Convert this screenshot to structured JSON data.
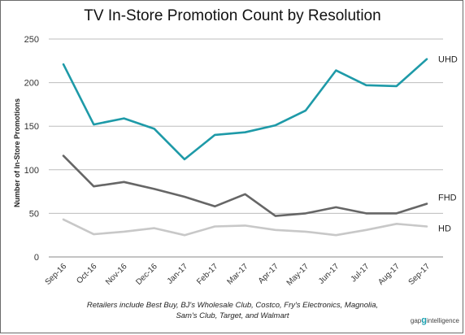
{
  "chart_data": {
    "type": "line",
    "title": "TV In-Store Promotion Count by Resolution",
    "ylabel": "Number of In-Store Promotions",
    "xlabel": "",
    "ylim": [
      0,
      250
    ],
    "yticks": [
      0,
      50,
      100,
      150,
      200,
      250
    ],
    "grid": true,
    "legend": "inline labels at line ends",
    "categories": [
      "Sep-16",
      "Oct-16",
      "Nov-16",
      "Dec-16",
      "Jan-17",
      "Feb-17",
      "Mar-17",
      "Apr-17",
      "May-17",
      "Jun-17",
      "Jul-17",
      "Aug-17",
      "Sep-17"
    ],
    "series": [
      {
        "name": "UHD",
        "color": "#1e9aa8",
        "values": [
          221,
          152,
          159,
          147,
          112,
          140,
          143,
          151,
          168,
          214,
          197,
          196,
          227
        ]
      },
      {
        "name": "FHD",
        "color": "#666666",
        "values": [
          116,
          81,
          86,
          78,
          69,
          58,
          72,
          47,
          50,
          57,
          50,
          50,
          61
        ]
      },
      {
        "name": "HD",
        "color": "#c8c8c8",
        "values": [
          43,
          26,
          29,
          33,
          25,
          35,
          36,
          31,
          29,
          25,
          31,
          38,
          35
        ]
      }
    ]
  },
  "footnote": {
    "line1": "Retailers include Best Buy, BJ's Wholesale Club, Costco, Fry's Electronics, Magnolia,",
    "line2": "Sam's Club, Target, and Walmart"
  },
  "brand": {
    "prefix": "gap",
    "mark": "g",
    "suffix": "intelligence"
  }
}
